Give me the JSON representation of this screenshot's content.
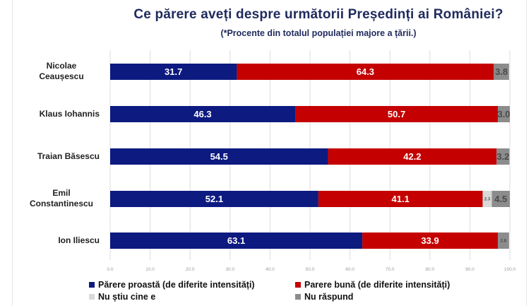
{
  "chart_data": {
    "type": "bar",
    "orientation": "horizontal",
    "stacked": true,
    "title": "Ce părere aveți despre următorii Președinți ai României?",
    "subtitle": "(*Procente din totalul populației majore a țării.)",
    "xlabel": "",
    "ylabel": "",
    "xlim": [
      0,
      100
    ],
    "xticks": [
      0,
      10,
      20,
      30,
      40,
      50,
      60,
      70,
      80,
      90,
      100
    ],
    "xtick_labels": [
      "0.0",
      "10.0",
      "20.0",
      "30.0",
      "40.0",
      "50.0",
      "60.0",
      "70.0",
      "80.0",
      "90.0",
      "100.0"
    ],
    "grid": true,
    "legend_position": "bottom",
    "categories": [
      "Nicolae Ceaușescu",
      "Klaus Iohannis",
      "Traian Băsescu",
      "Emil Constantinescu",
      "Ion Iliescu"
    ],
    "category_lines": [
      [
        "Nicolae",
        "Ceaușescu"
      ],
      [
        "Klaus Iohannis"
      ],
      [
        "Traian Băsescu"
      ],
      [
        "Emil",
        "Constantinescu"
      ],
      [
        "Ion Iliescu"
      ]
    ],
    "series": [
      {
        "name": "Părere proastă (de diferite intensități)",
        "color": "#0d1a80",
        "label_color": "#ffffff",
        "values": [
          31.7,
          46.3,
          54.5,
          52.1,
          63.1
        ]
      },
      {
        "name": "Parere bună (de diferite intensități)",
        "color": "#c40000",
        "label_color": "#ffffff",
        "values": [
          64.3,
          50.7,
          42.2,
          41.1,
          33.9
        ]
      },
      {
        "name": "Nu știu cine e",
        "color": "#d9d9d9",
        "label_color": "#555555",
        "values": [
          0,
          0,
          0,
          2.3,
          0
        ]
      },
      {
        "name": "Nu răspund",
        "color": "#8c8c8c",
        "label_color": "#4a4a4a",
        "values": [
          3.8,
          3.0,
          3.2,
          4.5,
          2.8
        ]
      }
    ],
    "data_labels": [
      [
        "31.7",
        "64.3",
        "",
        "3.8"
      ],
      [
        "46.3",
        "50.7",
        "",
        "3.0"
      ],
      [
        "54.5",
        "42.2",
        "",
        "3.2"
      ],
      [
        "52.1",
        "41.1",
        "2.3",
        "4.5"
      ],
      [
        "63.1",
        "33.9",
        "",
        "2.8"
      ]
    ]
  }
}
